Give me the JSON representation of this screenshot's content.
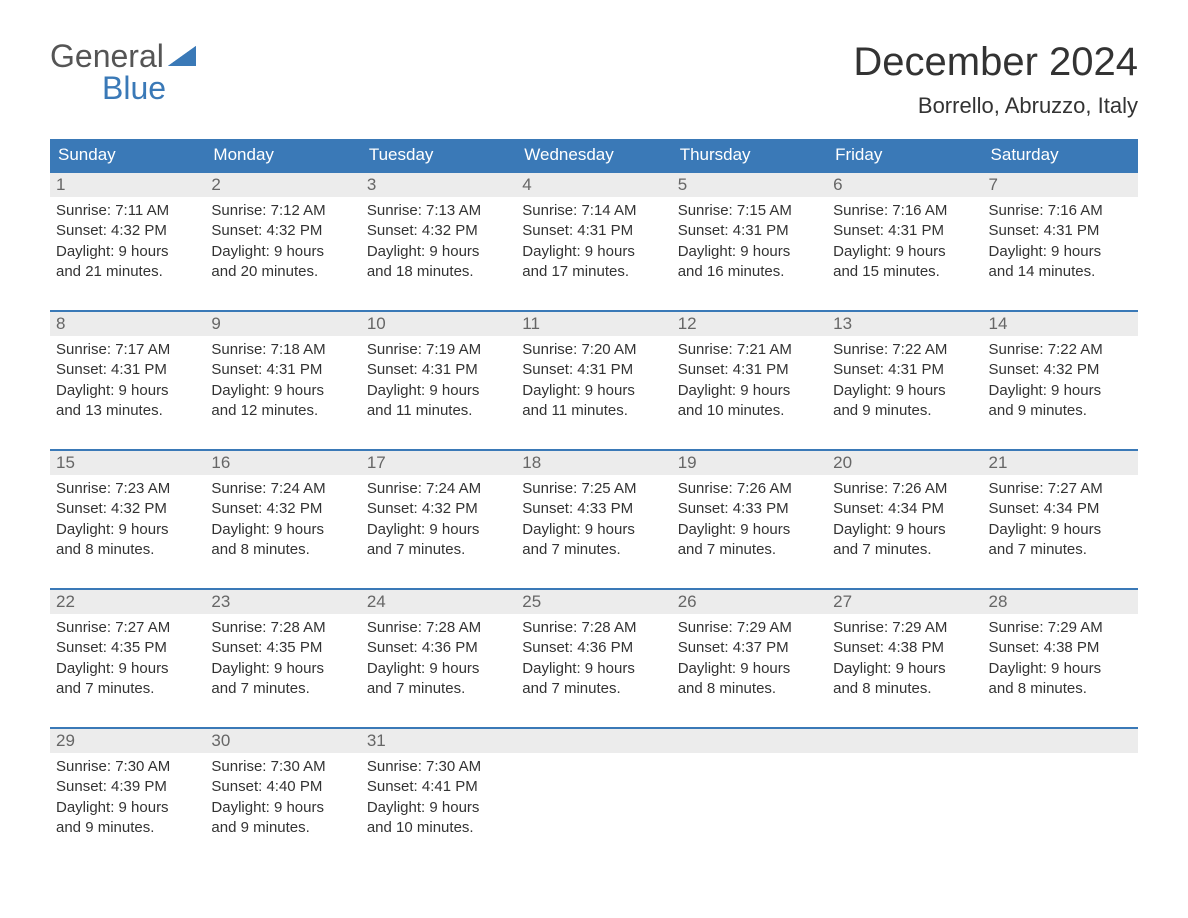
{
  "logo": {
    "general": "General",
    "blue": "Blue"
  },
  "title": "December 2024",
  "location": "Borrello, Abruzzo, Italy",
  "header_bg": "#3a79b7",
  "header_fg": "#ffffff",
  "daynum_bg": "#ececec",
  "daynum_fg": "#666666",
  "rule_color": "#3a79b7",
  "text_color": "#333333",
  "day_names": [
    "Sunday",
    "Monday",
    "Tuesday",
    "Wednesday",
    "Thursday",
    "Friday",
    "Saturday"
  ],
  "weeks": [
    [
      {
        "n": "1",
        "sunrise": "Sunrise: 7:11 AM",
        "sunset": "Sunset: 4:32 PM",
        "d1": "Daylight: 9 hours",
        "d2": "and 21 minutes."
      },
      {
        "n": "2",
        "sunrise": "Sunrise: 7:12 AM",
        "sunset": "Sunset: 4:32 PM",
        "d1": "Daylight: 9 hours",
        "d2": "and 20 minutes."
      },
      {
        "n": "3",
        "sunrise": "Sunrise: 7:13 AM",
        "sunset": "Sunset: 4:32 PM",
        "d1": "Daylight: 9 hours",
        "d2": "and 18 minutes."
      },
      {
        "n": "4",
        "sunrise": "Sunrise: 7:14 AM",
        "sunset": "Sunset: 4:31 PM",
        "d1": "Daylight: 9 hours",
        "d2": "and 17 minutes."
      },
      {
        "n": "5",
        "sunrise": "Sunrise: 7:15 AM",
        "sunset": "Sunset: 4:31 PM",
        "d1": "Daylight: 9 hours",
        "d2": "and 16 minutes."
      },
      {
        "n": "6",
        "sunrise": "Sunrise: 7:16 AM",
        "sunset": "Sunset: 4:31 PM",
        "d1": "Daylight: 9 hours",
        "d2": "and 15 minutes."
      },
      {
        "n": "7",
        "sunrise": "Sunrise: 7:16 AM",
        "sunset": "Sunset: 4:31 PM",
        "d1": "Daylight: 9 hours",
        "d2": "and 14 minutes."
      }
    ],
    [
      {
        "n": "8",
        "sunrise": "Sunrise: 7:17 AM",
        "sunset": "Sunset: 4:31 PM",
        "d1": "Daylight: 9 hours",
        "d2": "and 13 minutes."
      },
      {
        "n": "9",
        "sunrise": "Sunrise: 7:18 AM",
        "sunset": "Sunset: 4:31 PM",
        "d1": "Daylight: 9 hours",
        "d2": "and 12 minutes."
      },
      {
        "n": "10",
        "sunrise": "Sunrise: 7:19 AM",
        "sunset": "Sunset: 4:31 PM",
        "d1": "Daylight: 9 hours",
        "d2": "and 11 minutes."
      },
      {
        "n": "11",
        "sunrise": "Sunrise: 7:20 AM",
        "sunset": "Sunset: 4:31 PM",
        "d1": "Daylight: 9 hours",
        "d2": "and 11 minutes."
      },
      {
        "n": "12",
        "sunrise": "Sunrise: 7:21 AM",
        "sunset": "Sunset: 4:31 PM",
        "d1": "Daylight: 9 hours",
        "d2": "and 10 minutes."
      },
      {
        "n": "13",
        "sunrise": "Sunrise: 7:22 AM",
        "sunset": "Sunset: 4:31 PM",
        "d1": "Daylight: 9 hours",
        "d2": "and 9 minutes."
      },
      {
        "n": "14",
        "sunrise": "Sunrise: 7:22 AM",
        "sunset": "Sunset: 4:32 PM",
        "d1": "Daylight: 9 hours",
        "d2": "and 9 minutes."
      }
    ],
    [
      {
        "n": "15",
        "sunrise": "Sunrise: 7:23 AM",
        "sunset": "Sunset: 4:32 PM",
        "d1": "Daylight: 9 hours",
        "d2": "and 8 minutes."
      },
      {
        "n": "16",
        "sunrise": "Sunrise: 7:24 AM",
        "sunset": "Sunset: 4:32 PM",
        "d1": "Daylight: 9 hours",
        "d2": "and 8 minutes."
      },
      {
        "n": "17",
        "sunrise": "Sunrise: 7:24 AM",
        "sunset": "Sunset: 4:32 PM",
        "d1": "Daylight: 9 hours",
        "d2": "and 7 minutes."
      },
      {
        "n": "18",
        "sunrise": "Sunrise: 7:25 AM",
        "sunset": "Sunset: 4:33 PM",
        "d1": "Daylight: 9 hours",
        "d2": "and 7 minutes."
      },
      {
        "n": "19",
        "sunrise": "Sunrise: 7:26 AM",
        "sunset": "Sunset: 4:33 PM",
        "d1": "Daylight: 9 hours",
        "d2": "and 7 minutes."
      },
      {
        "n": "20",
        "sunrise": "Sunrise: 7:26 AM",
        "sunset": "Sunset: 4:34 PM",
        "d1": "Daylight: 9 hours",
        "d2": "and 7 minutes."
      },
      {
        "n": "21",
        "sunrise": "Sunrise: 7:27 AM",
        "sunset": "Sunset: 4:34 PM",
        "d1": "Daylight: 9 hours",
        "d2": "and 7 minutes."
      }
    ],
    [
      {
        "n": "22",
        "sunrise": "Sunrise: 7:27 AM",
        "sunset": "Sunset: 4:35 PM",
        "d1": "Daylight: 9 hours",
        "d2": "and 7 minutes."
      },
      {
        "n": "23",
        "sunrise": "Sunrise: 7:28 AM",
        "sunset": "Sunset: 4:35 PM",
        "d1": "Daylight: 9 hours",
        "d2": "and 7 minutes."
      },
      {
        "n": "24",
        "sunrise": "Sunrise: 7:28 AM",
        "sunset": "Sunset: 4:36 PM",
        "d1": "Daylight: 9 hours",
        "d2": "and 7 minutes."
      },
      {
        "n": "25",
        "sunrise": "Sunrise: 7:28 AM",
        "sunset": "Sunset: 4:36 PM",
        "d1": "Daylight: 9 hours",
        "d2": "and 7 minutes."
      },
      {
        "n": "26",
        "sunrise": "Sunrise: 7:29 AM",
        "sunset": "Sunset: 4:37 PM",
        "d1": "Daylight: 9 hours",
        "d2": "and 8 minutes."
      },
      {
        "n": "27",
        "sunrise": "Sunrise: 7:29 AM",
        "sunset": "Sunset: 4:38 PM",
        "d1": "Daylight: 9 hours",
        "d2": "and 8 minutes."
      },
      {
        "n": "28",
        "sunrise": "Sunrise: 7:29 AM",
        "sunset": "Sunset: 4:38 PM",
        "d1": "Daylight: 9 hours",
        "d2": "and 8 minutes."
      }
    ],
    [
      {
        "n": "29",
        "sunrise": "Sunrise: 7:30 AM",
        "sunset": "Sunset: 4:39 PM",
        "d1": "Daylight: 9 hours",
        "d2": "and 9 minutes."
      },
      {
        "n": "30",
        "sunrise": "Sunrise: 7:30 AM",
        "sunset": "Sunset: 4:40 PM",
        "d1": "Daylight: 9 hours",
        "d2": "and 9 minutes."
      },
      {
        "n": "31",
        "sunrise": "Sunrise: 7:30 AM",
        "sunset": "Sunset: 4:41 PM",
        "d1": "Daylight: 9 hours",
        "d2": "and 10 minutes."
      },
      null,
      null,
      null,
      null
    ]
  ]
}
